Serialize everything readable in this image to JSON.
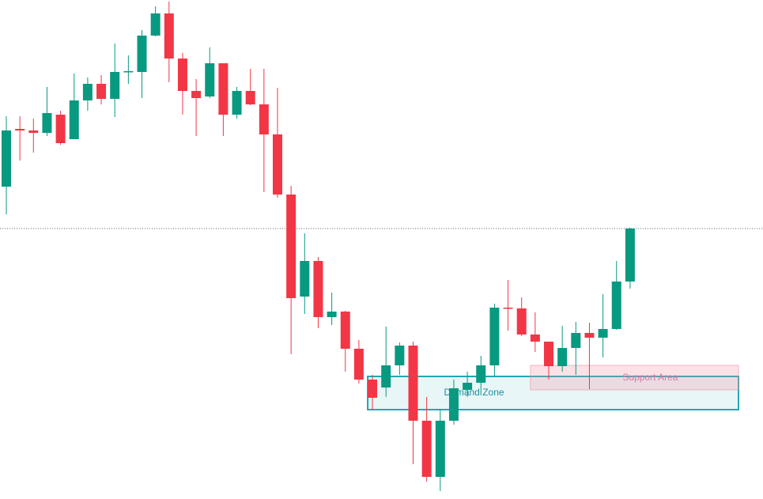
{
  "chart_data": {
    "type": "candlestick",
    "ylim": [
      0,
      631
    ],
    "up_color": "#089981",
    "down_color": "#f23645",
    "last_price_line": true,
    "open": [
      395,
      468,
      466,
      463,
      486,
      455,
      504,
      525,
      506,
      540,
      540,
      586,
      614,
      557,
      516,
      509,
      551,
      486,
      516,
      499,
      461,
      385,
      256,
      301,
      230,
      237,
      190,
      151,
      141,
      169,
      194,
      99,
      28,
      99,
      138,
      147,
      169,
      242,
      241,
      208,
      199,
      168,
      191,
      210,
      204,
      215,
      275
    ],
    "high": [
      484,
      484,
      481,
      521,
      491,
      538,
      533,
      536,
      576,
      561,
      593,
      623,
      629,
      564,
      531,
      571,
      551,
      521,
      544,
      544,
      520,
      396,
      336,
      306,
      261,
      238,
      201,
      157,
      218,
      198,
      199,
      129,
      114,
      151,
      161,
      181,
      247,
      277,
      255,
      236,
      199,
      219,
      224,
      223,
      259,
      301,
      343
    ],
    "low": [
      360,
      428,
      438,
      459,
      448,
      455,
      491,
      499,
      483,
      525,
      507,
      585,
      527,
      486,
      459,
      507,
      459,
      481,
      498,
      388,
      381,
      183,
      234,
      216,
      220,
      161,
      146,
      113,
      129,
      157,
      44,
      22,
      10,
      94,
      129,
      131,
      156,
      213,
      206,
      186,
      151,
      161,
      157,
      139,
      179,
      214,
      266
    ],
    "close": [
      466,
      466,
      463,
      488,
      450,
      504,
      525,
      506,
      540,
      541,
      586,
      614,
      557,
      516,
      507,
      551,
      486,
      516,
      499,
      461,
      385,
      254,
      301,
      230,
      237,
      190,
      151,
      128,
      169,
      194,
      99,
      28,
      99,
      140,
      147,
      169,
      242,
      241,
      208,
      199,
      168,
      191,
      210,
      204,
      215,
      275,
      342
    ],
    "zones": [
      {
        "label": "Demand Zone",
        "low": 113,
        "high": 155,
        "start_index": 27,
        "color": "#22a7b5"
      },
      {
        "label": "Support Area",
        "low": 138,
        "high": 169,
        "start_index": 39,
        "color": "#f28b9a"
      }
    ]
  }
}
